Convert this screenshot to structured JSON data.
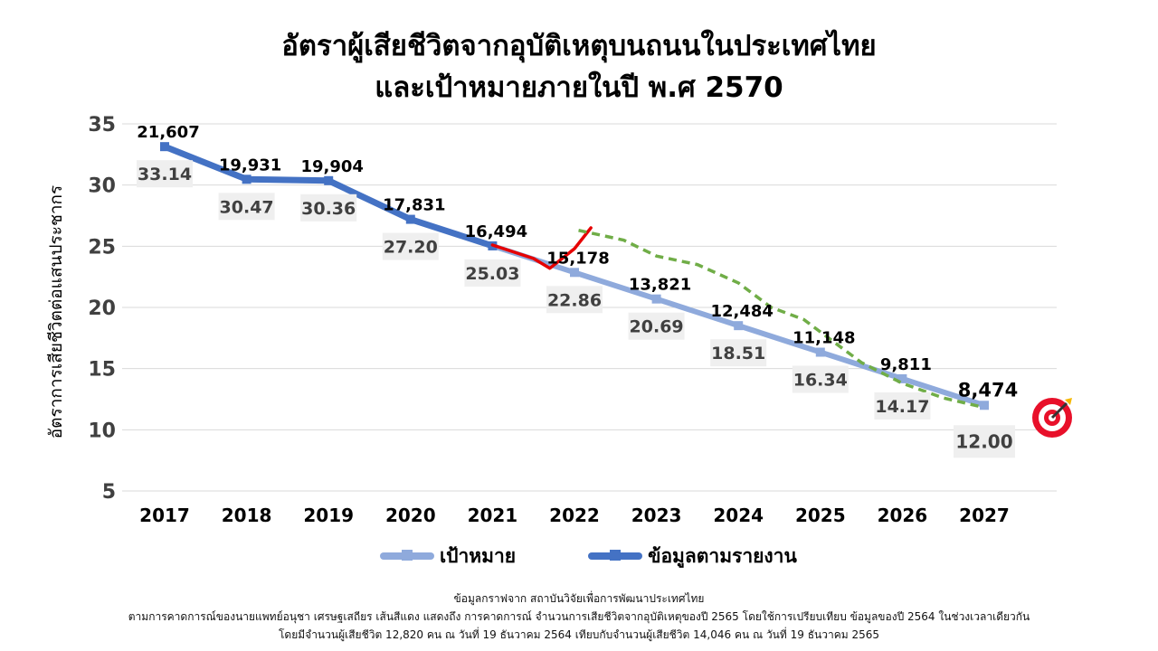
{
  "title": {
    "line1": "อัตราผู้เสียชีวิตจากอุบัติเหตุบนถนนในประเทศไทย",
    "line2": "และเป้าหมายภายในปี พ.ศ 2570"
  },
  "chart_data": {
    "type": "line",
    "ylabel": "อัตราการเสียชีวิตต่อแสนประชากร",
    "ylim": [
      5,
      35
    ],
    "yticks": [
      5,
      10,
      15,
      20,
      25,
      30,
      35
    ],
    "grid": true,
    "categories": [
      "2017",
      "2018",
      "2019",
      "2020",
      "2021",
      "2022",
      "2023",
      "2024",
      "2025",
      "2026",
      "2027"
    ],
    "series": [
      {
        "name": "เป้าหมาย",
        "color": "#8faadc",
        "values": [
          33.14,
          30.47,
          30.36,
          27.2,
          25.03,
          22.86,
          20.69,
          18.51,
          16.34,
          14.17,
          12.0
        ],
        "value_labels": [
          "33.14",
          "30.47",
          "30.36",
          "27.20",
          "25.03",
          "22.86",
          "20.69",
          "18.51",
          "16.34",
          "14.17",
          "12.00"
        ]
      },
      {
        "name": "ข้อมูลตามรายงาน",
        "color": "#4472c4",
        "values": [
          33.14,
          30.47,
          30.36,
          27.2,
          25.03,
          null,
          null,
          null,
          null,
          null,
          null
        ]
      }
    ],
    "death_counts": [
      "21,607",
      "19,931",
      "19,904",
      "17,831",
      "16,494",
      "15,178",
      "13,821",
      "12,484",
      "11,148",
      "9,811",
      "8,474"
    ],
    "annotations": [
      {
        "type": "hand-drawn-line",
        "color": "#e60000",
        "x": [
          2021,
          2021.5,
          2021.7,
          2022.0,
          2022.2
        ],
        "y": [
          25.1,
          24.0,
          23.2,
          24.8,
          26.5
        ]
      },
      {
        "type": "dashed-line",
        "color": "#70ad47",
        "x": [
          2022.05,
          2022.6,
          2023.0,
          2023.5,
          2024.0,
          2024.4,
          2024.8,
          2025.1,
          2025.5,
          2026.0,
          2026.5,
          2026.95
        ],
        "y": [
          26.3,
          25.5,
          24.2,
          23.5,
          22.0,
          20.0,
          19.0,
          17.5,
          15.5,
          13.8,
          12.6,
          11.9
        ]
      },
      {
        "type": "target-icon",
        "color": "#e8102a"
      }
    ]
  },
  "footer": {
    "line1": "ข้อมูลกราฟจาก สถาบันวิจัยเพื่อการพัฒนาประเทศไทย",
    "line2": "ตามการคาดการณ์ของนายแพทย์อนุชา เศรษฐเสถียร เส้นสีแดง แสดงถึง การคาดการณ์ จำนวนการเสียชีวิตจากอุบัติเหตุของปี 2565 โดยใช้การเปรียบเทียบ ข้อมูลของปี 2564 ในช่วงเวลาเดียวกัน",
    "line3": "โดยมีจำนวนผู้เสียชีวิต 12,820 คน ณ วันที่ 19 ธันวาคม 2564 เทียบกับจำนวนผู้เสียชีวิต 14,046 คน ณ วันที่ 19 ธันวาคม 2565"
  }
}
